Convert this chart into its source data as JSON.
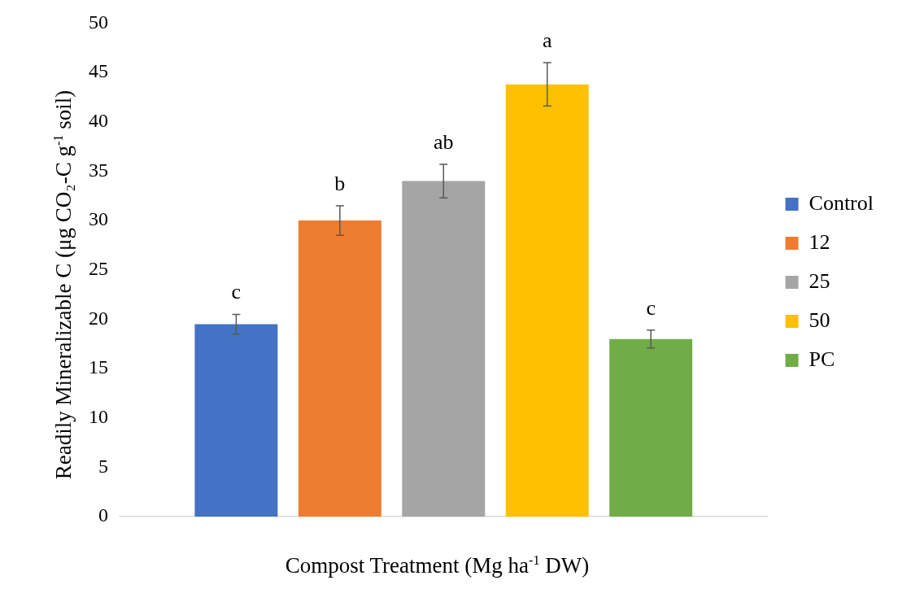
{
  "chart_data": {
    "type": "bar",
    "xlabel": "Compost Treatment (Mg ha$^{-1}$ DW)",
    "ylabel": "Readily Mineralizable C (μg CO₂-C g$^{-1}$ soil)",
    "categories": [
      null
    ],
    "series": [
      {
        "name": "Control",
        "color": "#4472c4",
        "values": [
          19.5
        ],
        "errors": [
          1.0
        ]
      },
      {
        "name": "12",
        "color": "#ed7d31",
        "values": [
          30.0
        ],
        "errors": [
          1.5
        ]
      },
      {
        "name": "25",
        "color": "#a5a5a5",
        "values": [
          34.0
        ],
        "errors": [
          1.7
        ]
      },
      {
        "name": "50",
        "color": "#ffc000",
        "values": [
          43.8
        ],
        "errors": [
          2.2
        ]
      },
      {
        "name": "PC",
        "color": "#70ad47",
        "values": [
          18.0
        ],
        "errors": [
          0.9
        ]
      }
    ],
    "annotations": [
      "c",
      "b",
      "ab",
      "a",
      "c"
    ],
    "ylim": [
      0,
      50
    ],
    "yticks": [
      0,
      5,
      10,
      15,
      20,
      25,
      30,
      35,
      40,
      45,
      50
    ],
    "legend": "right"
  }
}
